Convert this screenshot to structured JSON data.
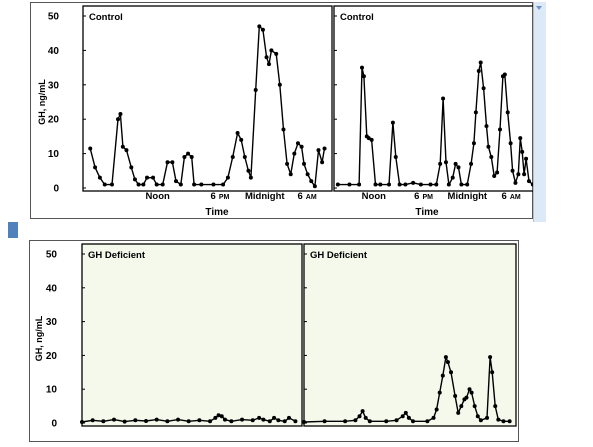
{
  "chart_data": [
    {
      "type": "line",
      "title": "",
      "ylabel": "GH, ng/mL",
      "xlabel": "Time",
      "ylim": [
        0,
        50
      ],
      "yticks": [
        0,
        10,
        20,
        30,
        40,
        50
      ],
      "grid": false,
      "panels": [
        {
          "title": "Control",
          "x_ticks": [
            {
              "label": "Noon",
              "suffix": ""
            },
            {
              "label": "6",
              "suffix": "PM"
            },
            {
              "label": "Midnight",
              "suffix": ""
            },
            {
              "label": "6",
              "suffix": "AM"
            }
          ],
          "points": [
            [
              0.03,
              11.5
            ],
            [
              0.05,
              6
            ],
            [
              0.07,
              3
            ],
            [
              0.09,
              1
            ],
            [
              0.12,
              1
            ],
            [
              0.145,
              20
            ],
            [
              0.155,
              21.5
            ],
            [
              0.165,
              12
            ],
            [
              0.18,
              11
            ],
            [
              0.2,
              6
            ],
            [
              0.215,
              2.5
            ],
            [
              0.23,
              1
            ],
            [
              0.25,
              1
            ],
            [
              0.265,
              3
            ],
            [
              0.29,
              3
            ],
            [
              0.305,
              1
            ],
            [
              0.33,
              1
            ],
            [
              0.35,
              7.5
            ],
            [
              0.37,
              7.5
            ],
            [
              0.385,
              2
            ],
            [
              0.405,
              1
            ],
            [
              0.42,
              9
            ],
            [
              0.435,
              10
            ],
            [
              0.45,
              9
            ],
            [
              0.46,
              1
            ],
            [
              0.49,
              1
            ],
            [
              0.54,
              1
            ],
            [
              0.58,
              1
            ],
            [
              0.6,
              3
            ],
            [
              0.62,
              9
            ],
            [
              0.64,
              16
            ],
            [
              0.655,
              14
            ],
            [
              0.67,
              9
            ],
            [
              0.685,
              5
            ],
            [
              0.695,
              3
            ],
            [
              0.715,
              28.5
            ],
            [
              0.73,
              47
            ],
            [
              0.745,
              46
            ],
            [
              0.76,
              38
            ],
            [
              0.77,
              36
            ],
            [
              0.78,
              40
            ],
            [
              0.8,
              39
            ],
            [
              0.815,
              30
            ],
            [
              0.83,
              17
            ],
            [
              0.845,
              7
            ],
            [
              0.86,
              4
            ],
            [
              0.875,
              10
            ],
            [
              0.89,
              13
            ],
            [
              0.905,
              12
            ],
            [
              0.915,
              7
            ],
            [
              0.93,
              4
            ],
            [
              0.945,
              2
            ],
            [
              0.96,
              0.5
            ],
            [
              0.975,
              11
            ],
            [
              0.99,
              7.5
            ],
            [
              1.0,
              11.5
            ]
          ]
        },
        {
          "title": "Control",
          "x_ticks": [
            {
              "label": "Noon",
              "suffix": ""
            },
            {
              "label": "6",
              "suffix": "PM"
            },
            {
              "label": "Midnight",
              "suffix": ""
            },
            {
              "label": "6",
              "suffix": "AM"
            }
          ],
          "points": [
            [
              0.02,
              1
            ],
            [
              0.08,
              1
            ],
            [
              0.13,
              1
            ],
            [
              0.145,
              35
            ],
            [
              0.155,
              32.5
            ],
            [
              0.17,
              15
            ],
            [
              0.18,
              14.5
            ],
            [
              0.195,
              14
            ],
            [
              0.215,
              1
            ],
            [
              0.24,
              1
            ],
            [
              0.285,
              1
            ],
            [
              0.305,
              19
            ],
            [
              0.32,
              9
            ],
            [
              0.34,
              1
            ],
            [
              0.37,
              1
            ],
            [
              0.41,
              1.5
            ],
            [
              0.45,
              1
            ],
            [
              0.5,
              1
            ],
            [
              0.53,
              1
            ],
            [
              0.55,
              7
            ],
            [
              0.565,
              26
            ],
            [
              0.58,
              7.5
            ],
            [
              0.595,
              1
            ],
            [
              0.615,
              3
            ],
            [
              0.63,
              7
            ],
            [
              0.645,
              6
            ],
            [
              0.66,
              1
            ],
            [
              0.69,
              1
            ],
            [
              0.71,
              7
            ],
            [
              0.725,
              13
            ],
            [
              0.735,
              22
            ],
            [
              0.75,
              34
            ],
            [
              0.76,
              36.5
            ],
            [
              0.775,
              29
            ],
            [
              0.79,
              18
            ],
            [
              0.8,
              12
            ],
            [
              0.815,
              9
            ],
            [
              0.83,
              3.5
            ],
            [
              0.845,
              4.5
            ],
            [
              0.86,
              17
            ],
            [
              0.875,
              32.5
            ],
            [
              0.885,
              33
            ],
            [
              0.9,
              22
            ],
            [
              0.915,
              13
            ],
            [
              0.925,
              5
            ],
            [
              0.94,
              1.5
            ],
            [
              0.955,
              4
            ],
            [
              0.965,
              14.5
            ],
            [
              0.975,
              10.5
            ],
            [
              0.985,
              4
            ],
            [
              0.995,
              8.5
            ],
            [
              1.01,
              2
            ],
            [
              1.03,
              1
            ],
            [
              1.05,
              1
            ],
            [
              1.065,
              1.5
            ]
          ]
        }
      ]
    },
    {
      "type": "line",
      "title": "",
      "ylabel": "GH, ng/mL",
      "xlabel": "",
      "ylim": [
        0,
        50
      ],
      "yticks": [
        0,
        10,
        20,
        30,
        40,
        50
      ],
      "grid": false,
      "panels": [
        {
          "title": "GH Deficient",
          "x_ticks": [],
          "points": [
            [
              0.0,
              0.3
            ],
            [
              0.05,
              0.8
            ],
            [
              0.1,
              0.5
            ],
            [
              0.15,
              1
            ],
            [
              0.2,
              0.4
            ],
            [
              0.25,
              0.8
            ],
            [
              0.3,
              0.6
            ],
            [
              0.35,
              1
            ],
            [
              0.4,
              0.5
            ],
            [
              0.45,
              1
            ],
            [
              0.5,
              0.5
            ],
            [
              0.55,
              0.8
            ],
            [
              0.6,
              0.5
            ],
            [
              0.625,
              1.5
            ],
            [
              0.64,
              2.3
            ],
            [
              0.655,
              2
            ],
            [
              0.67,
              1
            ],
            [
              0.7,
              0.5
            ],
            [
              0.75,
              1
            ],
            [
              0.8,
              0.8
            ],
            [
              0.83,
              1.5
            ],
            [
              0.85,
              1
            ],
            [
              0.88,
              0.5
            ],
            [
              0.9,
              1.5
            ],
            [
              0.92,
              0.8
            ],
            [
              0.95,
              0.5
            ],
            [
              0.97,
              1.5
            ],
            [
              1.0,
              0.5
            ]
          ]
        },
        {
          "title": "GH Deficient",
          "x_ticks": [],
          "points": [
            [
              0.0,
              0.3
            ],
            [
              0.1,
              0.5
            ],
            [
              0.2,
              0.5
            ],
            [
              0.25,
              0.8
            ],
            [
              0.27,
              2
            ],
            [
              0.285,
              3.5
            ],
            [
              0.3,
              1.5
            ],
            [
              0.32,
              0.5
            ],
            [
              0.4,
              0.5
            ],
            [
              0.45,
              0.8
            ],
            [
              0.48,
              2
            ],
            [
              0.495,
              3
            ],
            [
              0.51,
              1.5
            ],
            [
              0.53,
              0.5
            ],
            [
              0.6,
              0.5
            ],
            [
              0.63,
              1.5
            ],
            [
              0.645,
              4
            ],
            [
              0.66,
              9
            ],
            [
              0.675,
              14
            ],
            [
              0.69,
              19.5
            ],
            [
              0.7,
              18
            ],
            [
              0.715,
              15
            ],
            [
              0.735,
              8
            ],
            [
              0.75,
              3
            ],
            [
              0.765,
              5
            ],
            [
              0.78,
              7
            ],
            [
              0.79,
              7.5
            ],
            [
              0.805,
              10
            ],
            [
              0.815,
              9
            ],
            [
              0.83,
              5
            ],
            [
              0.845,
              2
            ],
            [
              0.86,
              0.8
            ],
            [
              0.89,
              1.5
            ],
            [
              0.905,
              19.5
            ],
            [
              0.915,
              15
            ],
            [
              0.93,
              5
            ],
            [
              0.945,
              1
            ],
            [
              0.97,
              0.5
            ],
            [
              1.0,
              0.5
            ]
          ]
        }
      ]
    }
  ]
}
